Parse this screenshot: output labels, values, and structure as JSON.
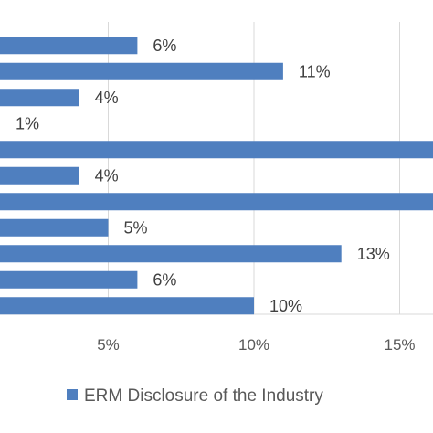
{
  "chart_data": {
    "type": "bar",
    "orientation": "horizontal",
    "series": [
      {
        "name": "ERM Disclosure of the Industry",
        "color": "#4f7fbf",
        "values": [
          6,
          11,
          4,
          1,
          17,
          4,
          17,
          5,
          13,
          6,
          10
        ],
        "data_labels": [
          "6%",
          "11%",
          "4%",
          "1%",
          "",
          "4%",
          "",
          "5%",
          "13%",
          "6%",
          "10%"
        ]
      }
    ],
    "x_ticks": [
      5,
      10,
      15
    ],
    "x_tick_labels": [
      "5%",
      "10%",
      "15%"
    ],
    "xlim": [
      0,
      15
    ],
    "grid": "vertical",
    "legend_position": "bottom"
  },
  "legend": {
    "label": "ERM Disclosure of the Industry"
  }
}
